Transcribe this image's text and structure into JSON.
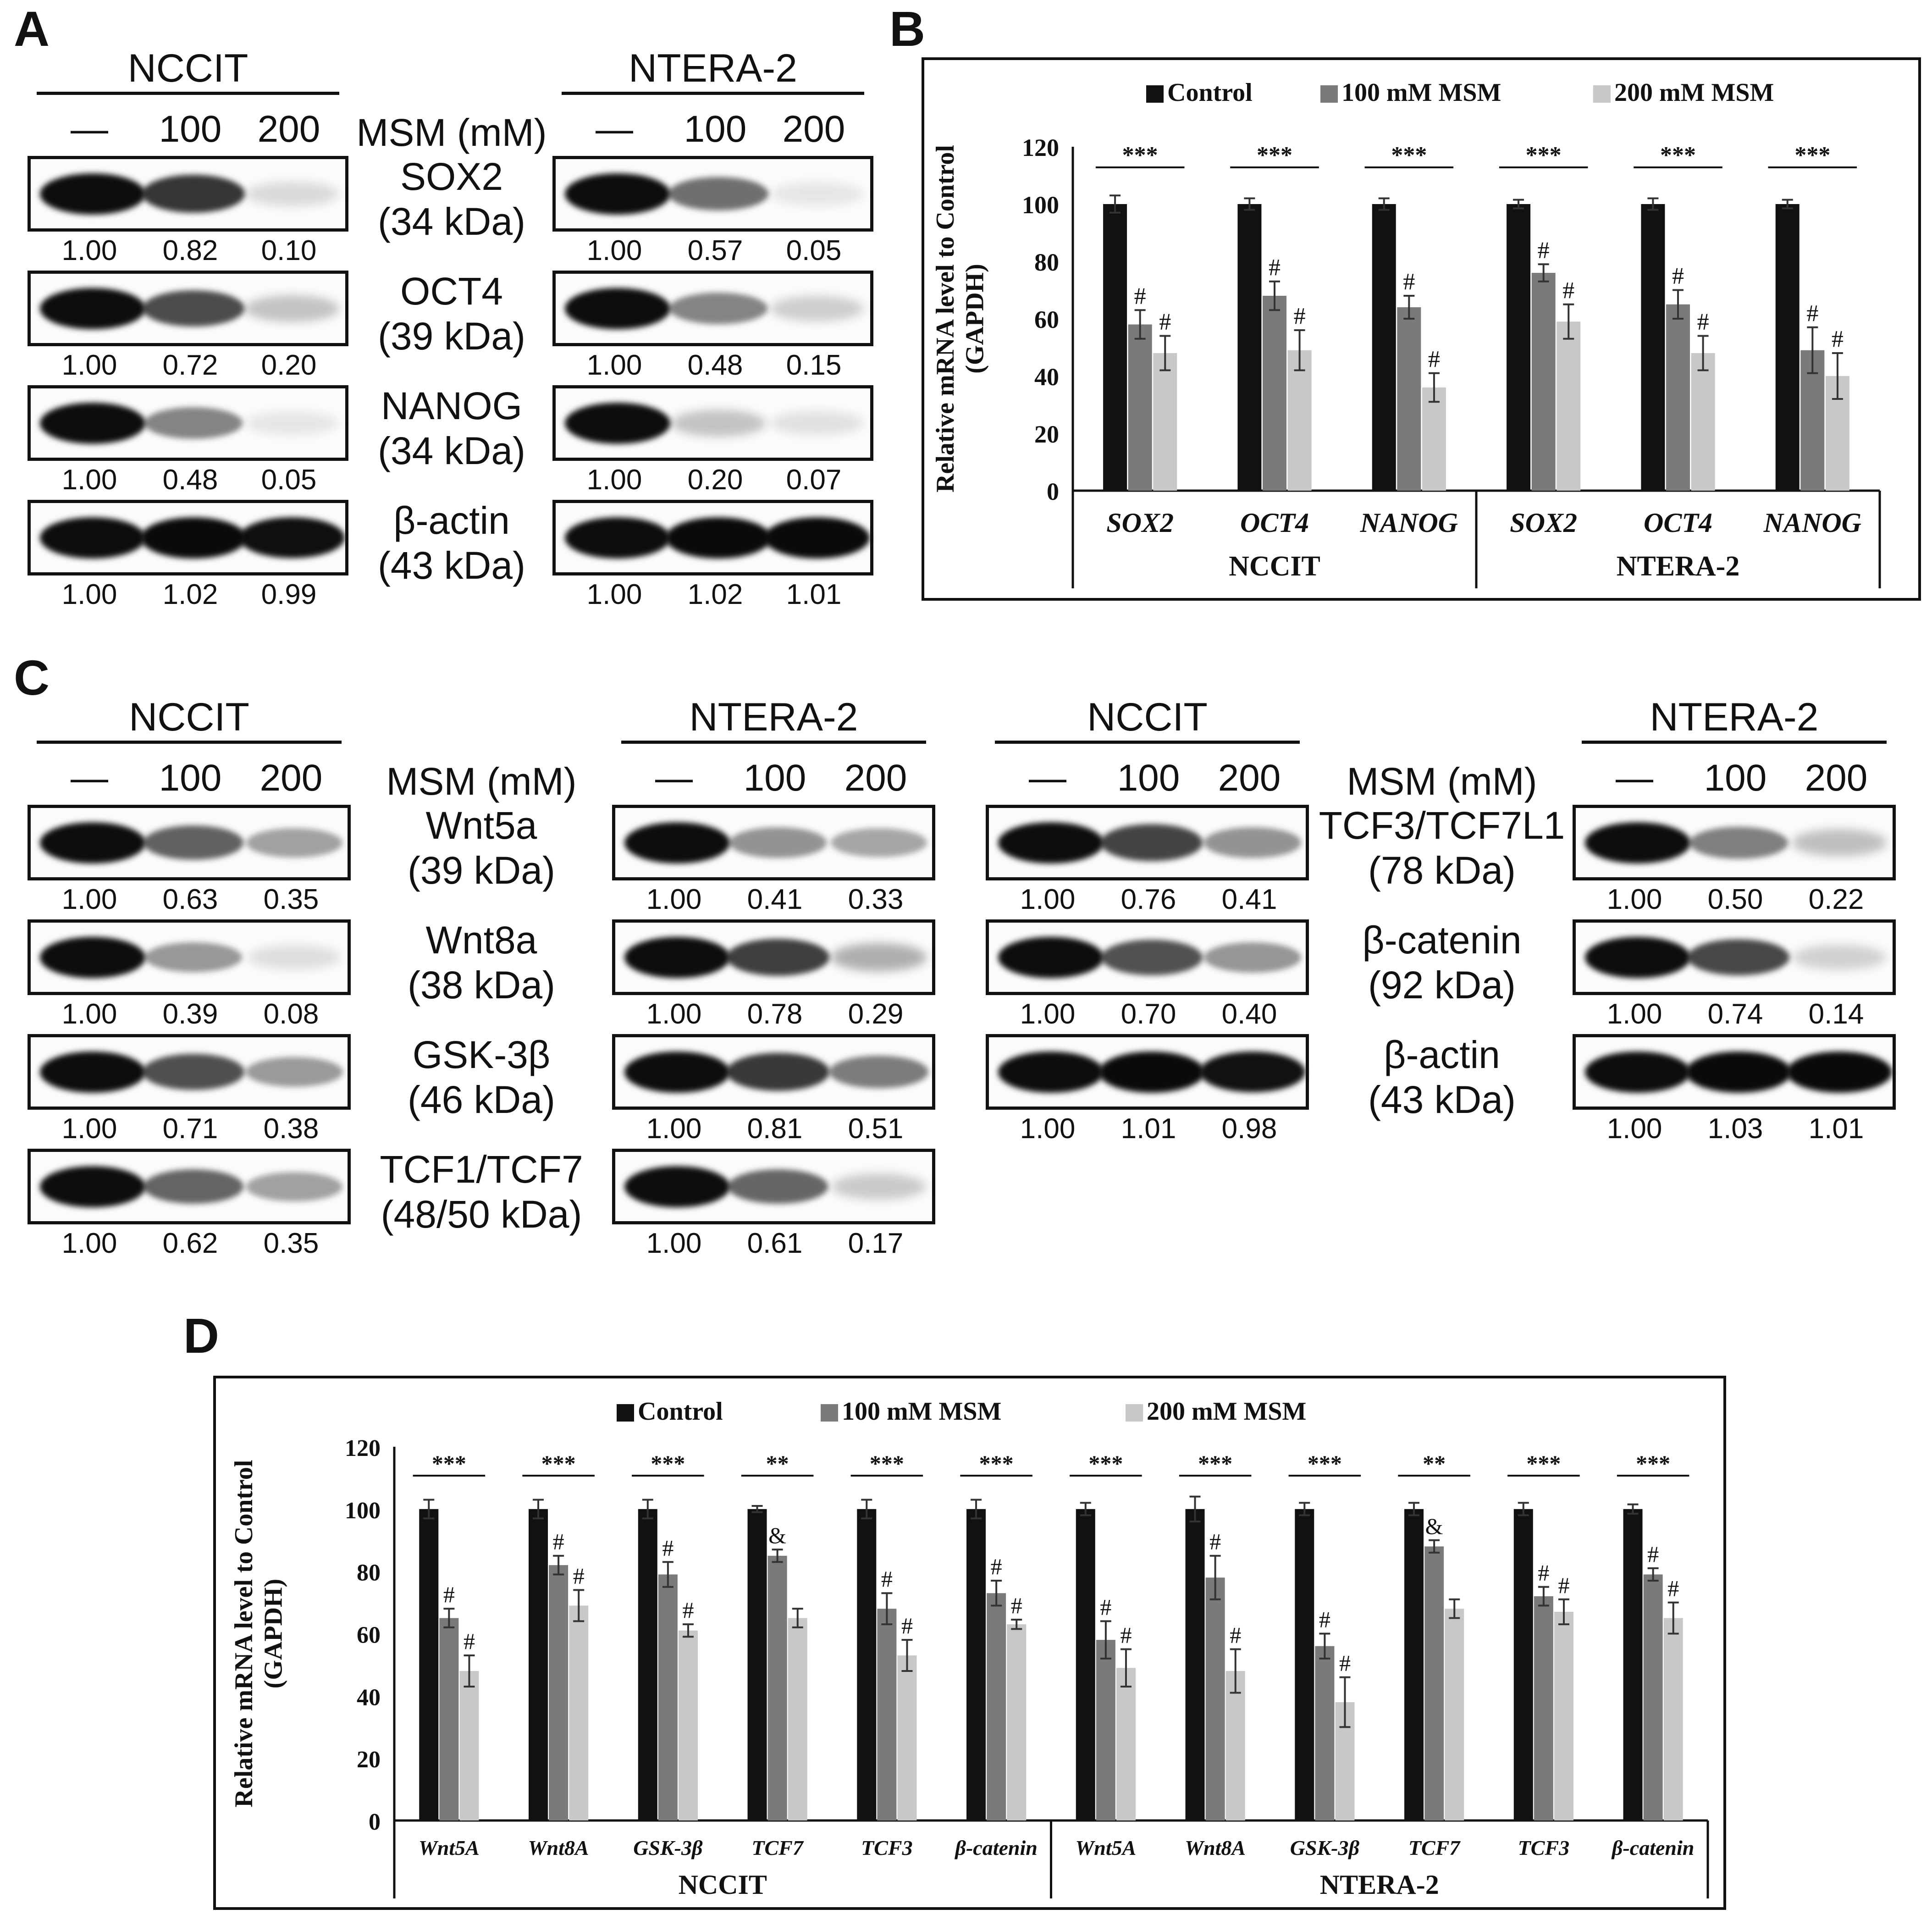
{
  "panels": {
    "a": "A",
    "b": "B",
    "c": "C",
    "d": "D"
  },
  "cell_lines": {
    "nccit": "NCCIT",
    "ntera": "NTERA-2"
  },
  "treatment_label": "MSM (mM)",
  "lanes": [
    "—",
    "100",
    "200"
  ],
  "panel_a": {
    "blots": [
      {
        "protein": "SOX2",
        "kda": "(34 kDa)",
        "nccit": [
          "1.00",
          "0.82",
          "0.10"
        ],
        "ntera": [
          "1.00",
          "0.57",
          "0.05"
        ]
      },
      {
        "protein": "OCT4",
        "kda": "(39 kDa)",
        "nccit": [
          "1.00",
          "0.72",
          "0.20"
        ],
        "ntera": [
          "1.00",
          "0.48",
          "0.15"
        ]
      },
      {
        "protein": "NANOG",
        "kda": "(34 kDa)",
        "nccit": [
          "1.00",
          "0.48",
          "0.05"
        ],
        "ntera": [
          "1.00",
          "0.20",
          "0.07"
        ]
      },
      {
        "protein": "β-actin",
        "kda": "(43 kDa)",
        "nccit": [
          "1.00",
          "1.02",
          "0.99"
        ],
        "ntera": [
          "1.00",
          "1.02",
          "1.01"
        ]
      }
    ]
  },
  "panel_c_left": {
    "blots": [
      {
        "protein": "Wnt5a",
        "kda": "(39 kDa)",
        "nccit": [
          "1.00",
          "0.63",
          "0.35"
        ],
        "ntera": [
          "1.00",
          "0.41",
          "0.33"
        ]
      },
      {
        "protein": "Wnt8a",
        "kda": "(38 kDa)",
        "nccit": [
          "1.00",
          "0.39",
          "0.08"
        ],
        "ntera": [
          "1.00",
          "0.78",
          "0.29"
        ]
      },
      {
        "protein": "GSK-3β",
        "kda": "(46 kDa)",
        "nccit": [
          "1.00",
          "0.71",
          "0.38"
        ],
        "ntera": [
          "1.00",
          "0.81",
          "0.51"
        ]
      },
      {
        "protein": "TCF1/TCF7",
        "kda": "(48/50 kDa)",
        "nccit": [
          "1.00",
          "0.62",
          "0.35"
        ],
        "ntera": [
          "1.00",
          "0.61",
          "0.17"
        ]
      }
    ]
  },
  "panel_c_right": {
    "blots": [
      {
        "protein": "TCF3/TCF7L1",
        "kda": "(78 kDa)",
        "nccit": [
          "1.00",
          "0.76",
          "0.41"
        ],
        "ntera": [
          "1.00",
          "0.50",
          "0.22"
        ]
      },
      {
        "protein": "β-catenin",
        "kda": "(92 kDa)",
        "nccit": [
          "1.00",
          "0.70",
          "0.40"
        ],
        "ntera": [
          "1.00",
          "0.74",
          "0.14"
        ]
      },
      {
        "protein": "β-actin",
        "kda": "(43 kDa)",
        "nccit": [
          "1.00",
          "1.01",
          "0.98"
        ],
        "ntera": [
          "1.00",
          "1.03",
          "1.01"
        ]
      }
    ]
  },
  "chart_data": [
    {
      "type": "bar",
      "title": "",
      "ylabel": "Relative mRNA level to Control (GAPDH)",
      "ylim": [
        0,
        120
      ],
      "yticks": [
        "0",
        "20",
        "40",
        "60",
        "80",
        "100",
        "120"
      ],
      "legend": [
        "Control",
        "100 mM MSM",
        "200 mM MSM"
      ],
      "colors": [
        "#111111",
        "#7a7a7a",
        "#c8c8c8"
      ],
      "groups": [
        {
          "name": "NCCIT",
          "categories": [
            "SOX2",
            "OCT4",
            "NANOG"
          ]
        },
        {
          "name": "NTERA-2",
          "categories": [
            "SOX2",
            "OCT4",
            "NANOG"
          ]
        }
      ],
      "categories": [
        "SOX2",
        "OCT4",
        "NANOG",
        "SOX2",
        "OCT4",
        "NANOG"
      ],
      "series": [
        {
          "name": "Control",
          "values": [
            100,
            100,
            100,
            100,
            100,
            100
          ],
          "errors": [
            3,
            2,
            2,
            1.5,
            2,
            1.5
          ]
        },
        {
          "name": "100 mM MSM",
          "values": [
            58,
            68,
            64,
            76,
            65,
            49
          ],
          "errors": [
            5,
            5,
            4,
            3,
            5,
            8
          ]
        },
        {
          "name": "200 mM MSM",
          "values": [
            48,
            49,
            36,
            59,
            48,
            40
          ],
          "errors": [
            6,
            7,
            5,
            6,
            6,
            8
          ]
        }
      ],
      "markers_100": [
        "#",
        "#",
        "#",
        "#",
        "#",
        "#"
      ],
      "markers_200": [
        "#",
        "#",
        "#",
        "#",
        "#",
        "#"
      ],
      "significance": [
        "***",
        "***",
        "***",
        "***",
        "***",
        "***"
      ]
    },
    {
      "type": "bar",
      "title": "",
      "ylabel": "Relative mRNA level to Control (GAPDH)",
      "ylim": [
        0,
        120
      ],
      "yticks": [
        "0",
        "20",
        "40",
        "60",
        "80",
        "100",
        "120"
      ],
      "legend": [
        "Control",
        "100 mM MSM",
        "200 mM MSM"
      ],
      "colors": [
        "#111111",
        "#7a7a7a",
        "#c8c8c8"
      ],
      "groups": [
        {
          "name": "NCCIT",
          "categories": [
            "Wnt5A",
            "Wnt8A",
            "GSK-3β",
            "TCF7",
            "TCF3",
            "β-catenin"
          ]
        },
        {
          "name": "NTERA-2",
          "categories": [
            "Wnt5A",
            "Wnt8A",
            "GSK-3β",
            "TCF7",
            "TCF3",
            "β-catenin"
          ]
        }
      ],
      "categories": [
        "Wnt5A",
        "Wnt8A",
        "GSK-3β",
        "TCF7",
        "TCF3",
        "β-catenin",
        "Wnt5A",
        "Wnt8A",
        "GSK-3β",
        "TCF7",
        "TCF3",
        "β-catenin"
      ],
      "series": [
        {
          "name": "Control",
          "values": [
            100,
            100,
            100,
            100,
            100,
            100,
            100,
            100,
            100,
            100,
            100,
            100
          ],
          "errors": [
            3,
            3,
            3,
            1,
            3,
            3,
            2,
            4,
            2,
            2,
            2,
            1.5
          ]
        },
        {
          "name": "100 mM MSM",
          "values": [
            65,
            82,
            79,
            85,
            68,
            73,
            58,
            78,
            56,
            88,
            72,
            79
          ],
          "errors": [
            3,
            3,
            4,
            2,
            5,
            4,
            6,
            7,
            4,
            2,
            3,
            2
          ]
        },
        {
          "name": "200 mM MSM",
          "values": [
            48,
            69,
            61,
            65,
            53,
            63,
            49,
            48,
            38,
            68,
            67,
            65
          ],
          "errors": [
            5,
            5,
            2,
            3,
            5,
            1.5,
            6,
            7,
            8,
            3,
            4,
            5
          ]
        }
      ],
      "markers_100": [
        "#",
        "#",
        "#",
        "&",
        "#",
        "#",
        "#",
        "#",
        "#",
        "&",
        "#",
        "#"
      ],
      "markers_200": [
        "#",
        "#",
        "#",
        "",
        "#",
        "#",
        "#",
        "#",
        "#",
        "",
        "#",
        "#"
      ],
      "significance": [
        "***",
        "***",
        "***",
        "**",
        "***",
        "***",
        "***",
        "***",
        "***",
        "**",
        "***",
        "***"
      ]
    }
  ]
}
